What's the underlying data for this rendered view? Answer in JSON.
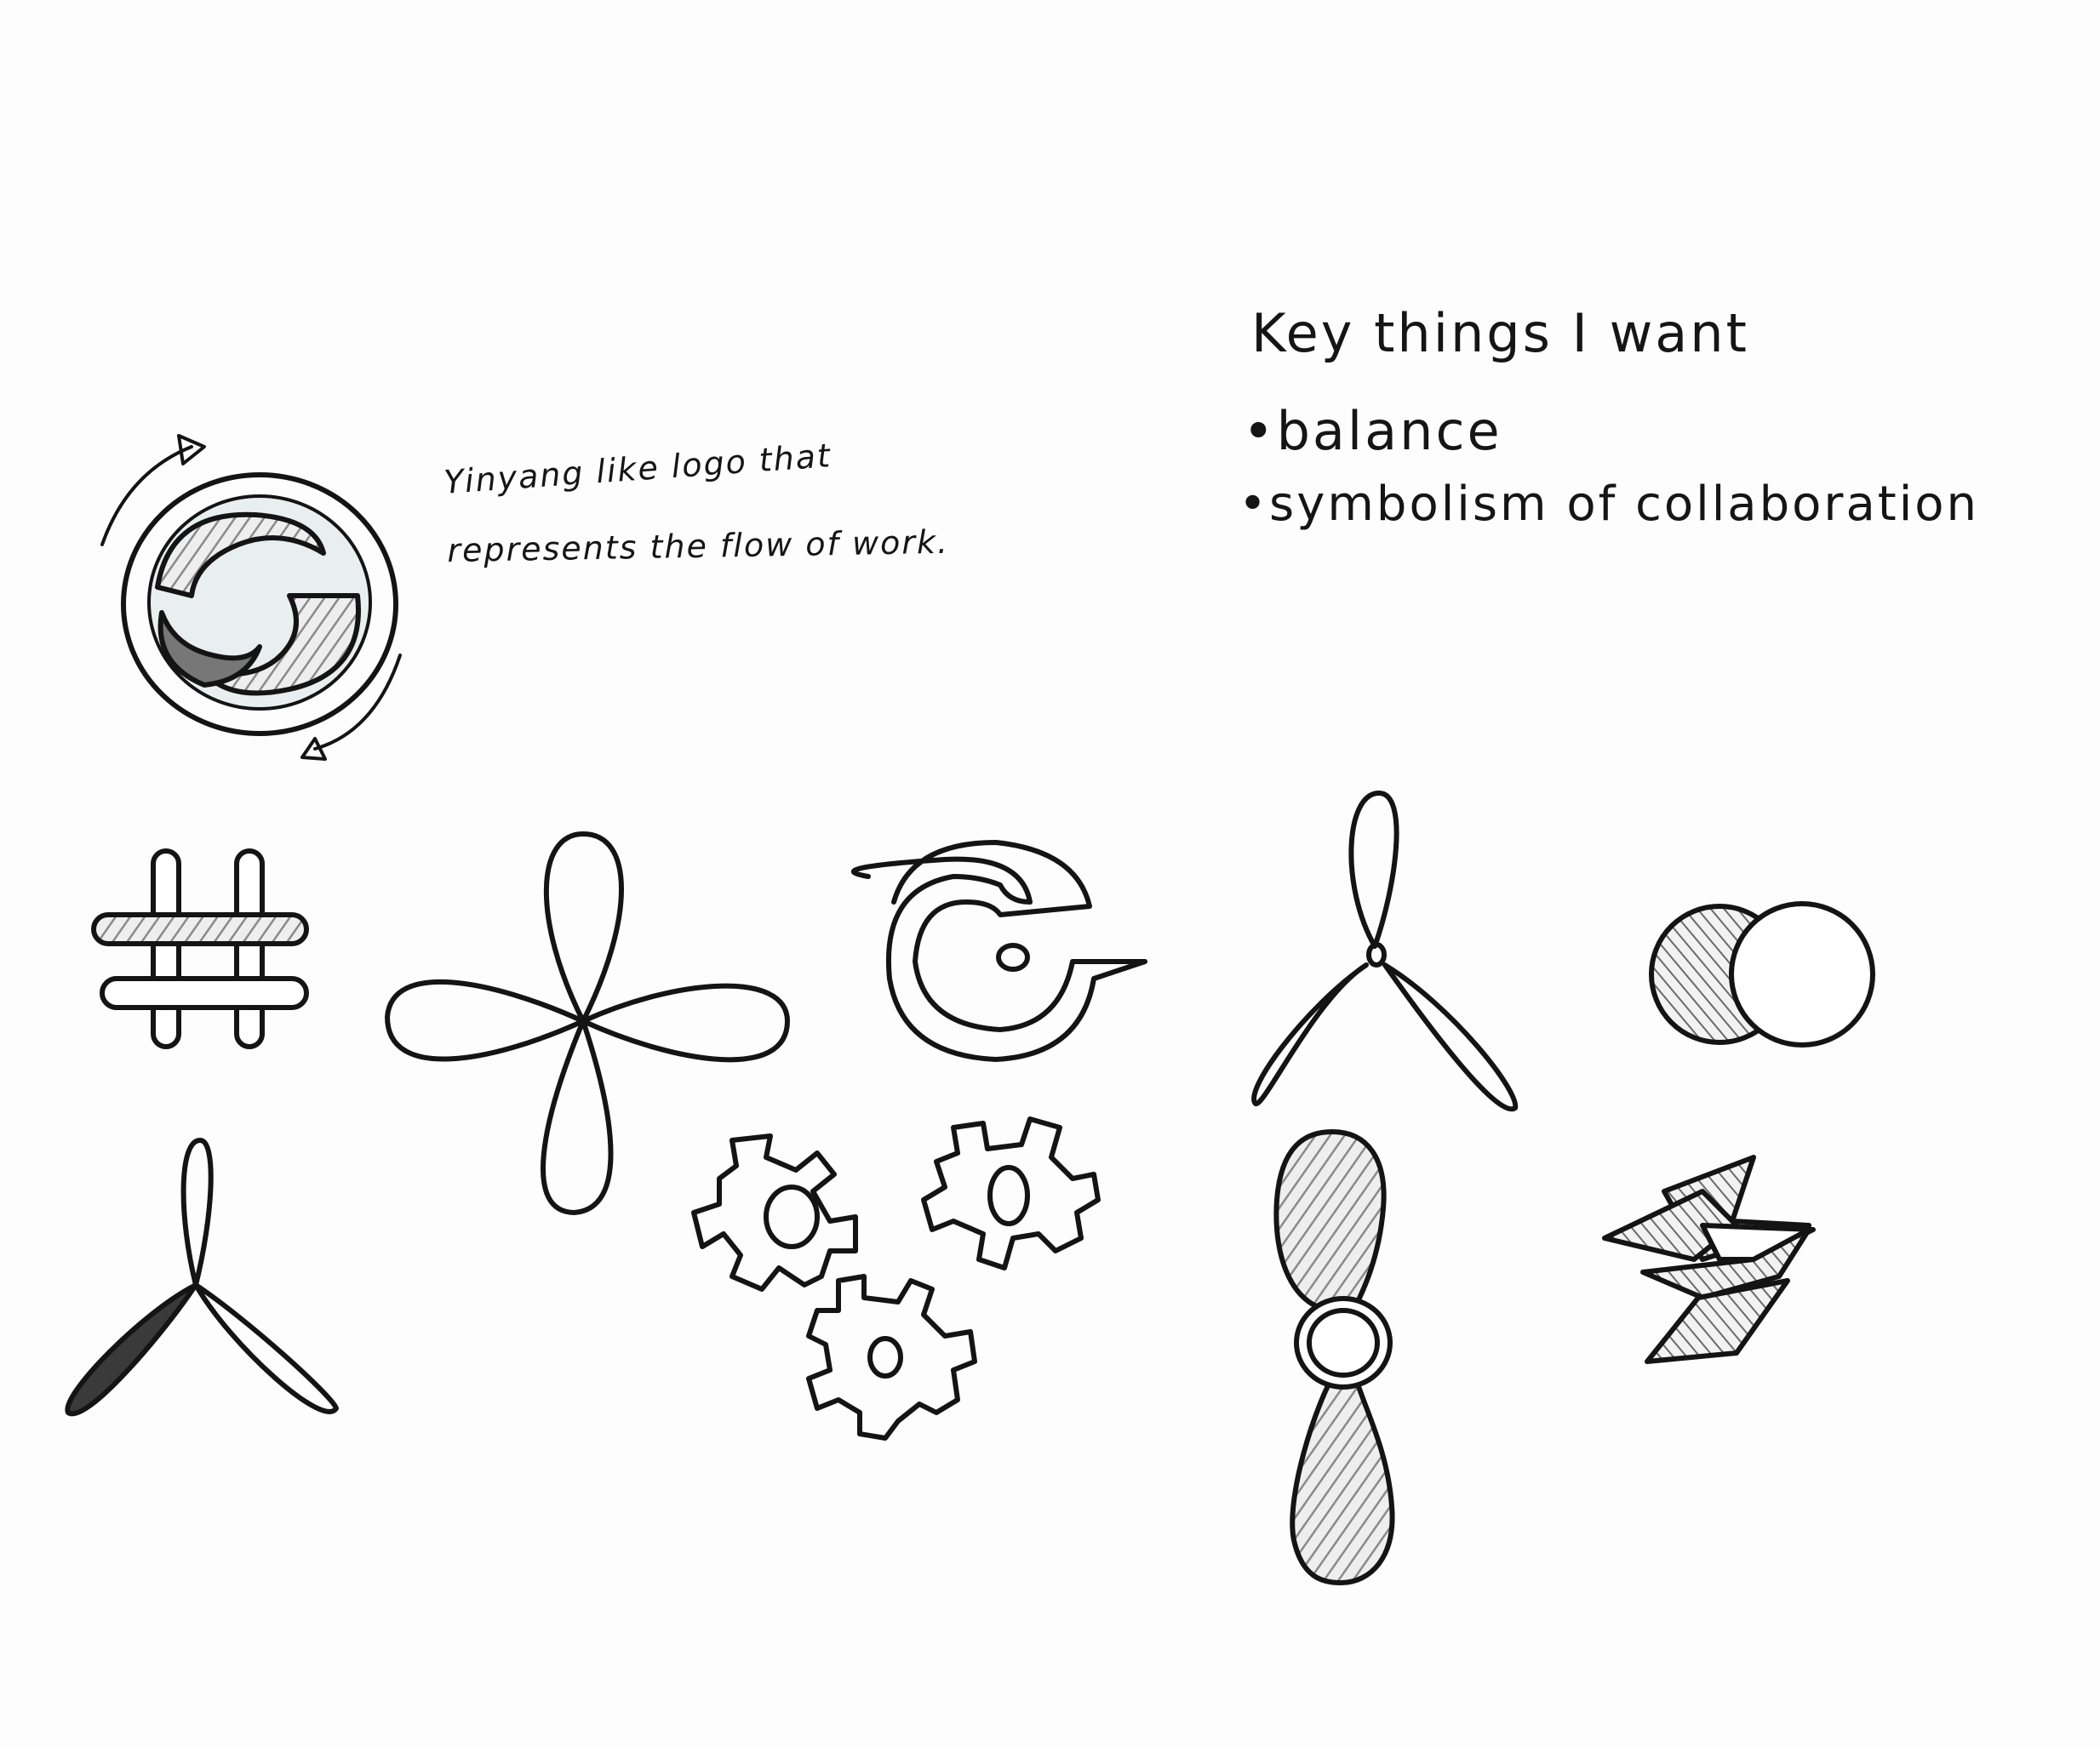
{
  "notes": {
    "yinyang_line1": "Yinyang like logo that",
    "yinyang_line2": "represents the flow of work.",
    "key_heading": "Key things I want",
    "bullets": [
      "balance",
      "symbolism of collaboration"
    ],
    "bullet_glyph": "•"
  },
  "sketches": [
    "yinyang-swirl-icon",
    "hashtag-weave-icon",
    "four-petal-flower-icon",
    "letter-g-icon",
    "three-blade-propeller-icon",
    "overlapping-circles-icon",
    "shaded-propeller-icon",
    "gears-cluster-icon",
    "two-blade-propeller-icon",
    "lightning-blocks-icon"
  ],
  "colors": {
    "paper": "#fdfdfd",
    "ink": "#141414",
    "shading": "#9a9a9a"
  }
}
